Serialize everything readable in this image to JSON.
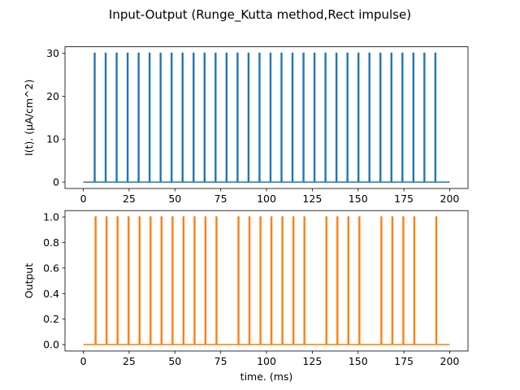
{
  "chart_data": [
    {
      "type": "line",
      "suptitle": "Input-Output (Runge_Kutta method,Rect impulse)",
      "title": "",
      "xlabel": "",
      "ylabel": "I(t). (μA/cm^2)",
      "xlim": [
        -10,
        210
      ],
      "ylim": [
        -1.5,
        31.5
      ],
      "xticks": [
        0,
        25,
        50,
        75,
        100,
        125,
        150,
        175,
        200
      ],
      "yticks": [
        0,
        10,
        20,
        30
      ],
      "ytick_labels": [
        "0",
        "10",
        "20",
        "30"
      ],
      "grid": false,
      "series": [
        {
          "color": "#1f77b4",
          "baseline": 0,
          "pulse_amplitude": 30,
          "pulse_width_ms": 0.4,
          "x_range": [
            0,
            200
          ],
          "pulse_times": [
            6,
            12,
            18,
            24,
            30,
            36,
            42,
            48,
            54,
            60,
            66,
            72,
            78,
            84,
            90,
            96,
            102,
            108,
            114,
            120,
            126,
            132,
            138,
            144,
            150,
            156,
            162,
            168,
            174,
            180,
            186,
            192
          ]
        }
      ]
    },
    {
      "type": "line",
      "title": "",
      "xlabel": "time. (ms)",
      "ylabel": "Output",
      "xlim": [
        -10,
        210
      ],
      "ylim": [
        -0.05,
        1.05
      ],
      "xticks": [
        0,
        25,
        50,
        75,
        100,
        125,
        150,
        175,
        200
      ],
      "yticks": [
        0,
        0.2,
        0.4,
        0.6,
        0.8,
        1.0
      ],
      "ytick_labels": [
        "0.0",
        "0.2",
        "0.4",
        "0.6",
        "0.8",
        "1.0"
      ],
      "grid": false,
      "series": [
        {
          "color": "#ff7f0e",
          "baseline": 0,
          "pulse_amplitude": 1,
          "pulse_width_ms": 0.4,
          "x_range": [
            0,
            200
          ],
          "pulse_times": [
            6.5,
            12.5,
            18.5,
            24.5,
            30.5,
            36.5,
            42.5,
            48.5,
            54.5,
            60.5,
            66.5,
            72.5,
            84.5,
            90.5,
            96.5,
            102.5,
            108.5,
            114.5,
            120.5,
            132.5,
            138.5,
            144.5,
            150.5,
            162.5,
            168.5,
            174.5,
            180.5,
            192.5
          ]
        }
      ]
    }
  ]
}
